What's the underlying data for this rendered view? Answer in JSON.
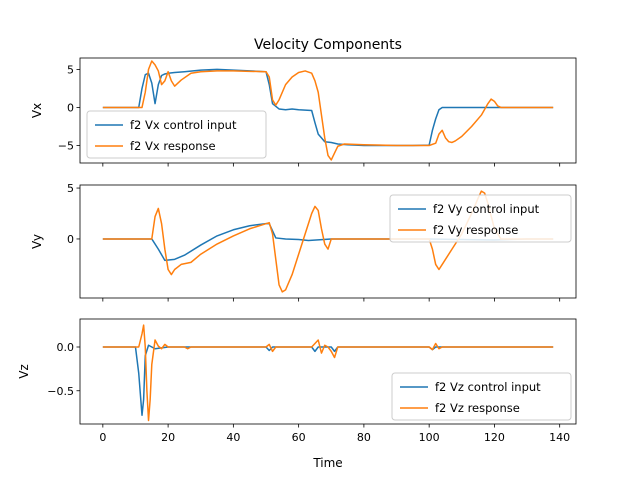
{
  "chart_data": [
    {
      "type": "line",
      "title": "Velocity Components",
      "ylabel": "Vx",
      "xlabel": "",
      "xlim": [
        -7,
        145
      ],
      "ylim": [
        -7.3,
        6.5
      ],
      "xticks": [
        0,
        20,
        40,
        60,
        80,
        100,
        120,
        140
      ],
      "show_x_tick_labels": false,
      "yticks": [
        -5,
        0,
        5
      ],
      "ytick_labels": [
        "−5",
        "0",
        "5"
      ],
      "legend_position": "lower-left",
      "series": [
        {
          "name": "f2 Vx control input",
          "color": "#1f77b4",
          "points": [
            [
              0,
              0
            ],
            [
              11,
              0
            ],
            [
              12,
              2.5
            ],
            [
              13,
              4.3
            ],
            [
              14,
              4.5
            ],
            [
              15,
              3.2
            ],
            [
              16,
              0.5
            ],
            [
              17,
              3
            ],
            [
              18,
              4.2
            ],
            [
              19,
              4.4
            ],
            [
              20,
              4.5
            ],
            [
              22,
              4.6
            ],
            [
              25,
              4.7
            ],
            [
              30,
              4.9
            ],
            [
              35,
              5
            ],
            [
              40,
              4.9
            ],
            [
              45,
              4.8
            ],
            [
              50,
              4.7
            ],
            [
              51,
              3
            ],
            [
              52,
              0.5
            ],
            [
              54,
              -0.2
            ],
            [
              56,
              -0.3
            ],
            [
              58,
              -0.2
            ],
            [
              60,
              -0.3
            ],
            [
              64,
              -0.4
            ],
            [
              65,
              -2
            ],
            [
              66,
              -3.5
            ],
            [
              67,
              -4
            ],
            [
              68,
              -4.5
            ],
            [
              70,
              -4.6
            ],
            [
              72,
              -4.8
            ],
            [
              75,
              -4.9
            ],
            [
              80,
              -5
            ],
            [
              90,
              -5
            ],
            [
              95,
              -5
            ],
            [
              100,
              -4.95
            ],
            [
              101,
              -3
            ],
            [
              102,
              -1.5
            ],
            [
              103,
              -0.3
            ],
            [
              104,
              0
            ],
            [
              106,
              0
            ],
            [
              110,
              0
            ],
            [
              120,
              0
            ],
            [
              138,
              0
            ]
          ]
        },
        {
          "name": "f2 Vx response",
          "color": "#ff7f0e",
          "points": [
            [
              0,
              0
            ],
            [
              12,
              0
            ],
            [
              13,
              2
            ],
            [
              14,
              5
            ],
            [
              15,
              6.1
            ],
            [
              16,
              5.6
            ],
            [
              17,
              4.8
            ],
            [
              18,
              3
            ],
            [
              19,
              3.5
            ],
            [
              20,
              4.7
            ],
            [
              21,
              3.5
            ],
            [
              22,
              2.8
            ],
            [
              24,
              3.6
            ],
            [
              27,
              4.5
            ],
            [
              30,
              4.7
            ],
            [
              35,
              4.8
            ],
            [
              40,
              4.8
            ],
            [
              45,
              4.75
            ],
            [
              50,
              4.7
            ],
            [
              51,
              4
            ],
            [
              52,
              1
            ],
            [
              53,
              0.3
            ],
            [
              54,
              1
            ],
            [
              56,
              3
            ],
            [
              58,
              4
            ],
            [
              60,
              4.6
            ],
            [
              62,
              4.8
            ],
            [
              64,
              4.5
            ],
            [
              65,
              3.5
            ],
            [
              66,
              2
            ],
            [
              67,
              -1
            ],
            [
              68,
              -4
            ],
            [
              69,
              -6.3
            ],
            [
              70,
              -6.9
            ],
            [
              71,
              -6
            ],
            [
              72,
              -5.1
            ],
            [
              74,
              -4.8
            ],
            [
              80,
              -4.9
            ],
            [
              90,
              -5
            ],
            [
              100,
              -5
            ],
            [
              102,
              -4.7
            ],
            [
              103,
              -3.5
            ],
            [
              104,
              -3
            ],
            [
              105,
              -4
            ],
            [
              106,
              -4.5
            ],
            [
              107,
              -4.6
            ],
            [
              108,
              -4.4
            ],
            [
              110,
              -3.8
            ],
            [
              113,
              -2.5
            ],
            [
              116,
              -1
            ],
            [
              118,
              0.5
            ],
            [
              119,
              1.1
            ],
            [
              120,
              0.8
            ],
            [
              121,
              0.2
            ],
            [
              122,
              0
            ],
            [
              130,
              0
            ],
            [
              138,
              0
            ]
          ]
        }
      ]
    },
    {
      "type": "line",
      "title": "",
      "ylabel": "Vy",
      "xlabel": "",
      "xlim": [
        -7,
        145
      ],
      "ylim": [
        -5.8,
        5.3
      ],
      "xticks": [
        0,
        20,
        40,
        60,
        80,
        100,
        120,
        140
      ],
      "show_x_tick_labels": false,
      "yticks": [
        0,
        5
      ],
      "ytick_labels": [
        "0",
        "5"
      ],
      "legend_position": "upper-right",
      "series": [
        {
          "name": "f2 Vy control input",
          "color": "#1f77b4",
          "points": [
            [
              0,
              0
            ],
            [
              15,
              0
            ],
            [
              17,
              -1
            ],
            [
              19,
              -2.1
            ],
            [
              22,
              -2
            ],
            [
              25,
              -1.6
            ],
            [
              30,
              -0.6
            ],
            [
              35,
              0.3
            ],
            [
              40,
              0.9
            ],
            [
              45,
              1.3
            ],
            [
              50,
              1.5
            ],
            [
              51,
              1.5
            ],
            [
              52,
              0.8
            ],
            [
              53,
              0.1
            ],
            [
              56,
              0
            ],
            [
              60,
              -0.05
            ],
            [
              63,
              -0.15
            ],
            [
              70,
              0
            ],
            [
              100,
              0
            ],
            [
              110,
              -0.05
            ],
            [
              120,
              -0.1
            ],
            [
              130,
              0
            ],
            [
              138,
              0
            ]
          ]
        },
        {
          "name": "f2 Vy response",
          "color": "#ff7f0e",
          "points": [
            [
              0,
              0
            ],
            [
              15,
              0
            ],
            [
              16,
              2.2
            ],
            [
              17,
              3
            ],
            [
              18,
              1.5
            ],
            [
              19,
              -1
            ],
            [
              20,
              -3
            ],
            [
              21,
              -3.5
            ],
            [
              22,
              -3
            ],
            [
              24,
              -2.5
            ],
            [
              27,
              -2.3
            ],
            [
              30,
              -1.5
            ],
            [
              35,
              -0.5
            ],
            [
              40,
              0.3
            ],
            [
              45,
              1
            ],
            [
              50,
              1.5
            ],
            [
              51,
              1.6
            ],
            [
              52,
              0.5
            ],
            [
              53,
              -2
            ],
            [
              54,
              -4.5
            ],
            [
              55,
              -5.2
            ],
            [
              56,
              -5
            ],
            [
              58,
              -3.5
            ],
            [
              60,
              -1.5
            ],
            [
              62,
              0.5
            ],
            [
              64,
              2.5
            ],
            [
              65,
              3.2
            ],
            [
              66,
              2.8
            ],
            [
              67,
              1
            ],
            [
              68,
              -0.5
            ],
            [
              69,
              -1
            ],
            [
              70,
              0
            ],
            [
              72,
              0
            ],
            [
              100,
              0
            ],
            [
              101,
              -1
            ],
            [
              102,
              -2.5
            ],
            [
              103,
              -3
            ],
            [
              104,
              -2.5
            ],
            [
              107,
              -1
            ],
            [
              110,
              0.5
            ],
            [
              113,
              2.5
            ],
            [
              115,
              4
            ],
            [
              116,
              4.7
            ],
            [
              117,
              4.5
            ],
            [
              118,
              3.5
            ],
            [
              120,
              1
            ],
            [
              122,
              0
            ],
            [
              130,
              0
            ],
            [
              138,
              0
            ]
          ]
        }
      ]
    },
    {
      "type": "line",
      "title": "",
      "ylabel": "Vz",
      "xlabel": "Time",
      "xlim": [
        -7,
        145
      ],
      "ylim": [
        -0.88,
        0.32
      ],
      "xticks": [
        0,
        20,
        40,
        60,
        80,
        100,
        120,
        140
      ],
      "show_x_tick_labels": true,
      "yticks": [
        -0.5,
        0.0
      ],
      "ytick_labels": [
        "−0.5",
        "0.0"
      ],
      "legend_position": "lower-right",
      "series": [
        {
          "name": "f2 Vz control input",
          "color": "#1f77b4",
          "points": [
            [
              0,
              0
            ],
            [
              10,
              0
            ],
            [
              11,
              -0.3
            ],
            [
              12,
              -0.78
            ],
            [
              12.5,
              -0.6
            ],
            [
              13,
              -0.1
            ],
            [
              14,
              0.02
            ],
            [
              15,
              0
            ],
            [
              16,
              -0.02
            ],
            [
              20,
              0
            ],
            [
              50,
              0
            ],
            [
              51,
              -0.04
            ],
            [
              52,
              0
            ],
            [
              64,
              0
            ],
            [
              65,
              -0.05
            ],
            [
              66,
              0
            ],
            [
              70,
              0
            ],
            [
              71,
              -0.05
            ],
            [
              72,
              0
            ],
            [
              100,
              0
            ],
            [
              101,
              -0.03
            ],
            [
              102,
              0
            ],
            [
              138,
              0
            ]
          ]
        },
        {
          "name": "f2 Vz response",
          "color": "#ff7f0e",
          "points": [
            [
              0,
              0
            ],
            [
              11,
              0
            ],
            [
              12,
              0.15
            ],
            [
              12.5,
              0.25
            ],
            [
              13,
              0
            ],
            [
              13.5,
              -0.5
            ],
            [
              14,
              -0.84
            ],
            [
              14.5,
              -0.6
            ],
            [
              15,
              -0.2
            ],
            [
              16,
              0.08
            ],
            [
              17,
              0.01
            ],
            [
              18,
              -0.02
            ],
            [
              19,
              0.03
            ],
            [
              20,
              0
            ],
            [
              25,
              0
            ],
            [
              26,
              -0.02
            ],
            [
              27,
              0
            ],
            [
              50,
              0
            ],
            [
              51,
              0.03
            ],
            [
              52,
              -0.05
            ],
            [
              53,
              0
            ],
            [
              64,
              0
            ],
            [
              65,
              0.04
            ],
            [
              66,
              0.08
            ],
            [
              67,
              -0.07
            ],
            [
              68,
              0.02
            ],
            [
              69,
              0
            ],
            [
              70,
              -0.05
            ],
            [
              71,
              -0.12
            ],
            [
              72,
              0
            ],
            [
              100,
              0
            ],
            [
              101,
              -0.03
            ],
            [
              102,
              0.04
            ],
            [
              103,
              -0.02
            ],
            [
              104,
              0
            ],
            [
              138,
              0
            ]
          ]
        }
      ]
    }
  ]
}
